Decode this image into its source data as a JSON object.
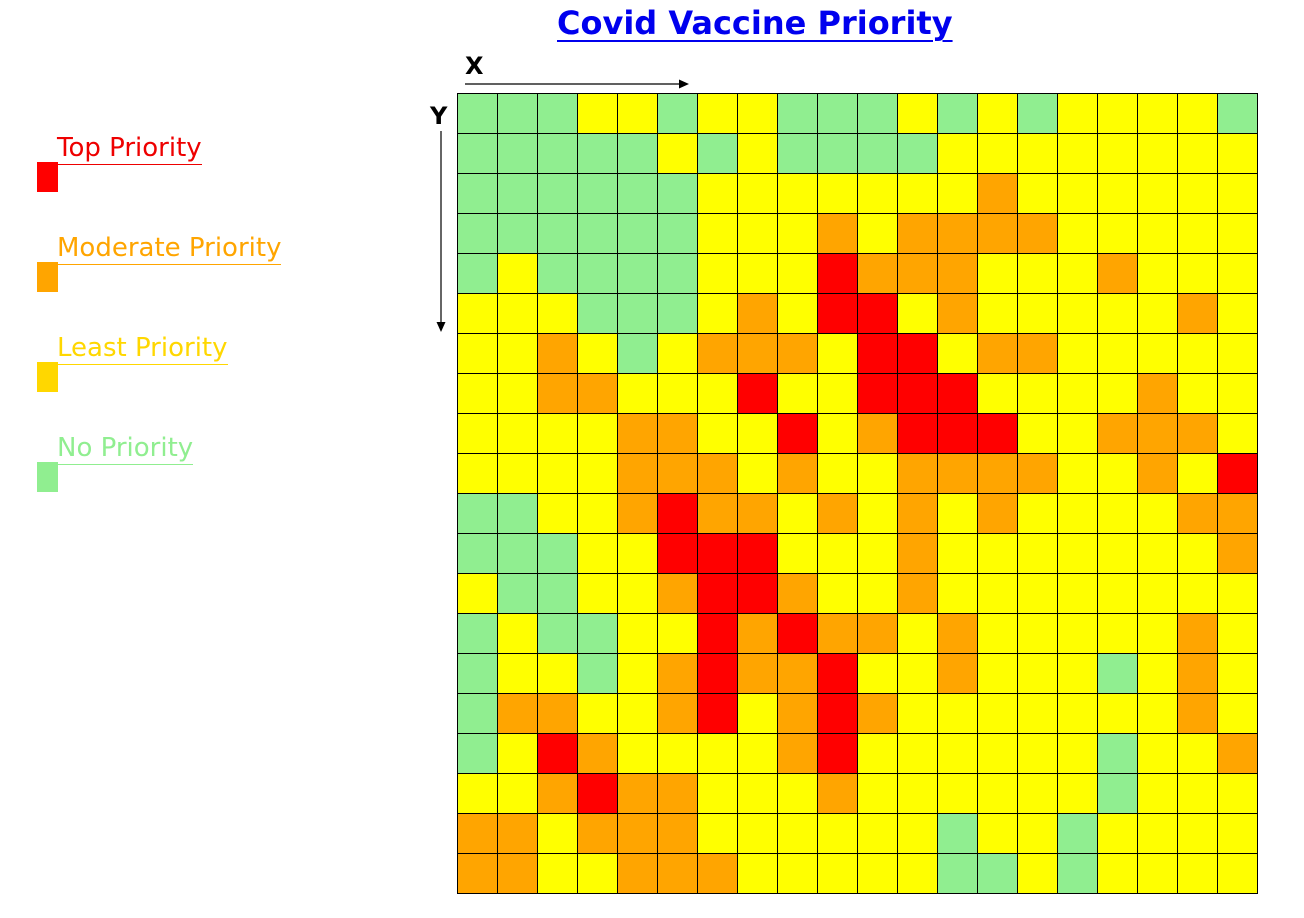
{
  "chart_data": {
    "type": "heatmap",
    "title": "Covid Vaccine Priority",
    "xlabel": "X",
    "ylabel": "Y",
    "rows": 20,
    "cols": 20,
    "legend": [
      {
        "key": "T",
        "label": "Top Priority",
        "color": "#ff0000",
        "text_color": "#ee0000"
      },
      {
        "key": "M",
        "label": "Moderate Priority",
        "color": "#ffa500",
        "text_color": "#ffa500"
      },
      {
        "key": "L",
        "label": "Least Priority",
        "color": "#ffff00",
        "swatch_color": "#ffd700",
        "text_color": "#ffd700"
      },
      {
        "key": "N",
        "label": "No Priority",
        "color": "#90ee90",
        "text_color": "#90ee90"
      }
    ],
    "grid": [
      "NNNLLNLLNNNLNLNLLLLN",
      "NNNNNLNLNNNNLLLLLLLL",
      "NNNNNNLLLLLLLMLLLLLL",
      "NNNNNNLLLMLMMMMLLLLL",
      "NLNNNNLLLTMMMLLLMLLL",
      "LLLNNNLMLTTLMLLLLLML",
      "LLMLNLMMMLTTLMMLLLLL",
      "LLMMLLLTLLTTTLLLLMLL",
      "LLLLMMLLTLMTTTLLMMML",
      "LLLLMMMLMLLMMMMLLMLT",
      "NNLLMTMMLMLMLMLLLLMM",
      "NNNLLTTTLLLMLLLLLLLM",
      "LNNLLMTTMLLMLLLLLLLL",
      "NLNNLLTMTMMLMLLLLLML",
      "NLLNLMTMMTLLMLLLNLML",
      "NMMLLMTLMTMLLLLLLLML",
      "NLTMLLLLMTLLLLLLNLLM",
      "LLMTMMLLLMLLLLLLNLLL",
      "MMLMMMLLLLLLNLLNLLLL",
      "MMLLMMMLLLLLNNLNLLLL"
    ]
  }
}
